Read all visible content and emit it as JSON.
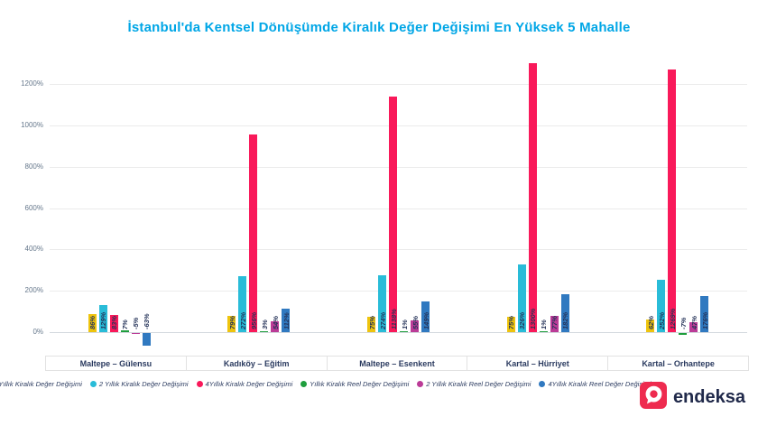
{
  "chart_data": {
    "type": "bar",
    "title": "İstanbul'da Kentsel Dönüşümde Kiralık Değer Değişimi En Yüksek 5 Mahalle",
    "unit": "%",
    "categories": [
      "Maltepe – Gülensu",
      "Kadıköy – Eğitim",
      "Maltepe – Esenkent",
      "Kartal – Hürriyet",
      "Kartal – Orhantepe"
    ],
    "series": [
      {
        "name": "Yıllık Kiralık Değer Değişimi",
        "color": "#eec40e",
        "values": [
          86,
          79,
          75,
          75,
          62
        ]
      },
      {
        "name": "2 Yıllık Kiralık Değer Değişimi",
        "color": "#29bcd8",
        "values": [
          129,
          272,
          274,
          326,
          252
        ]
      },
      {
        "name": "4Yıllık Kiralık Değer Değişimi",
        "color": "#f9195a",
        "values": [
          83,
          956,
          1138,
          1300,
          1269
        ]
      },
      {
        "name": "Yıllık Kiralık Reel Değer Değişimi",
        "color": "#1f9e3d",
        "values": [
          7,
          3,
          1,
          1,
          -7
        ]
      },
      {
        "name": "2 Yıllık Kiralık Reel Değer Değişimi",
        "color": "#bb3b97",
        "values": [
          -5,
          54,
          55,
          77,
          47
        ]
      },
      {
        "name": "4Yıllık Kiralık Reel Değer Değişimi",
        "color": "#3079c0",
        "values": [
          -63,
          112,
          149,
          182,
          176
        ]
      }
    ],
    "y_ticks": [
      0,
      200,
      400,
      600,
      800,
      1000,
      1200
    ],
    "ylim": [
      -80,
      1350
    ],
    "grid": true,
    "legend_position": "bottom"
  },
  "branding": {
    "logo_text": "endeksa"
  }
}
